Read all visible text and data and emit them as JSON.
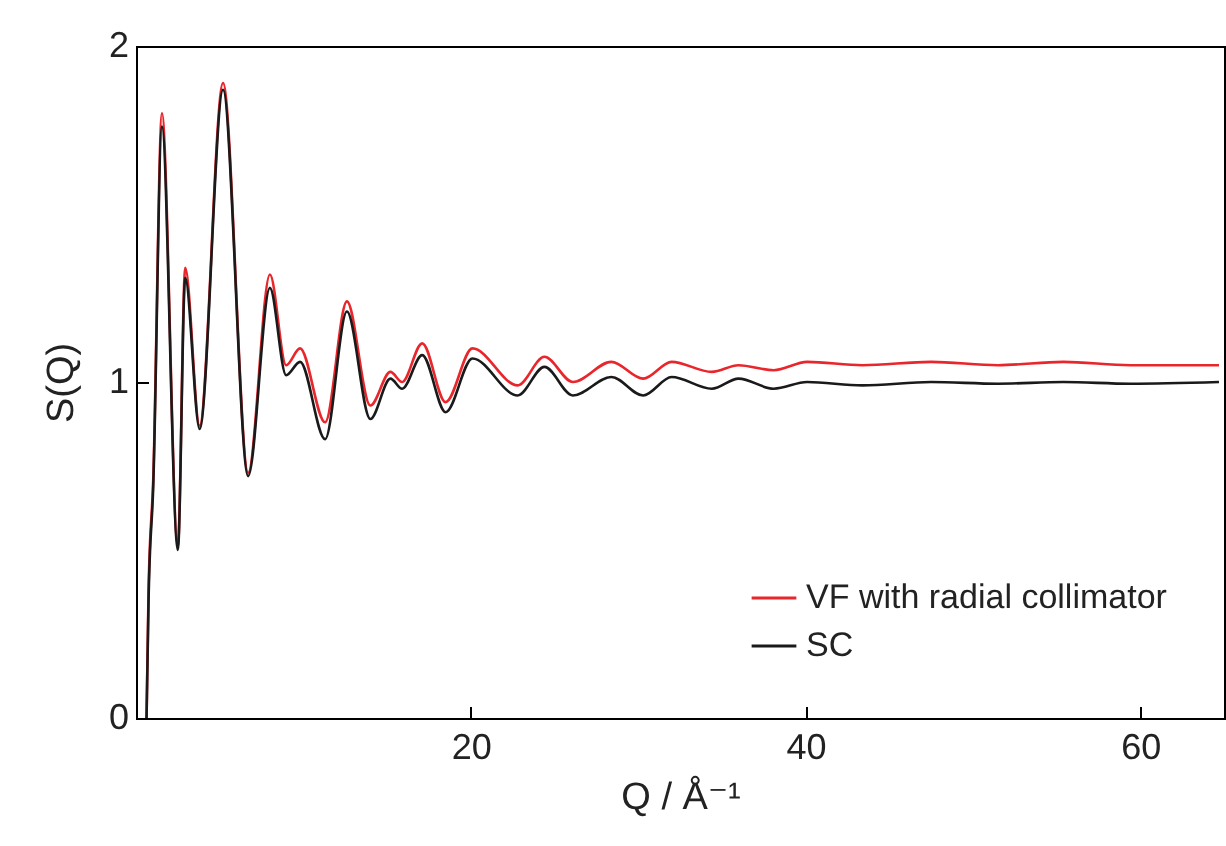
{
  "chart_data": {
    "type": "line",
    "xlabel": "Q / Å⁻¹",
    "ylabel": "S(Q)",
    "x": [
      0.63,
      0.75,
      1.03,
      1.55,
      2.5,
      2.94,
      3.8,
      5.2,
      6.7,
      8.0,
      8.97,
      9.8,
      11.3,
      12.6,
      14.0,
      15.2,
      15.9,
      17.1,
      18.5,
      20.1,
      22.8,
      24.4,
      26.1,
      28.4,
      30.3,
      32.0,
      34.4,
      36.0,
      38.1,
      40.1,
      43.4,
      47.5,
      51.5,
      55.4,
      59.4,
      64.7
    ],
    "series": [
      {
        "name": "VF with radial collimator",
        "color": "#e8262b",
        "values": [
          0,
          0.38,
          0.71,
          1.8,
          0.51,
          1.34,
          0.87,
          1.89,
          0.73,
          1.32,
          1.05,
          1.1,
          0.88,
          1.24,
          0.93,
          1.03,
          1.0,
          1.115,
          0.94,
          1.1,
          0.99,
          1.075,
          1.0,
          1.06,
          1.01,
          1.06,
          1.03,
          1.05,
          1.035,
          1.06,
          1.05,
          1.06,
          1.05,
          1.06,
          1.05,
          1.05
        ]
      },
      {
        "name": "SC",
        "color": "#1a1a1a",
        "values": [
          0,
          0.35,
          0.69,
          1.76,
          0.5,
          1.31,
          0.86,
          1.87,
          0.72,
          1.28,
          1.02,
          1.06,
          0.83,
          1.21,
          0.89,
          1.01,
          0.98,
          1.08,
          0.91,
          1.07,
          0.96,
          1.045,
          0.96,
          1.015,
          0.96,
          1.015,
          0.98,
          1.01,
          0.98,
          1.0,
          0.99,
          1.0,
          0.995,
          1.0,
          0.995,
          1.0
        ]
      }
    ],
    "xlim": [
      0,
      65
    ],
    "ylim": [
      0,
      2
    ],
    "xticks": [
      20,
      40,
      60
    ],
    "yticks": [
      0,
      1,
      2
    ],
    "grid": false,
    "legend": "bottom right",
    "line_style": "solid"
  }
}
